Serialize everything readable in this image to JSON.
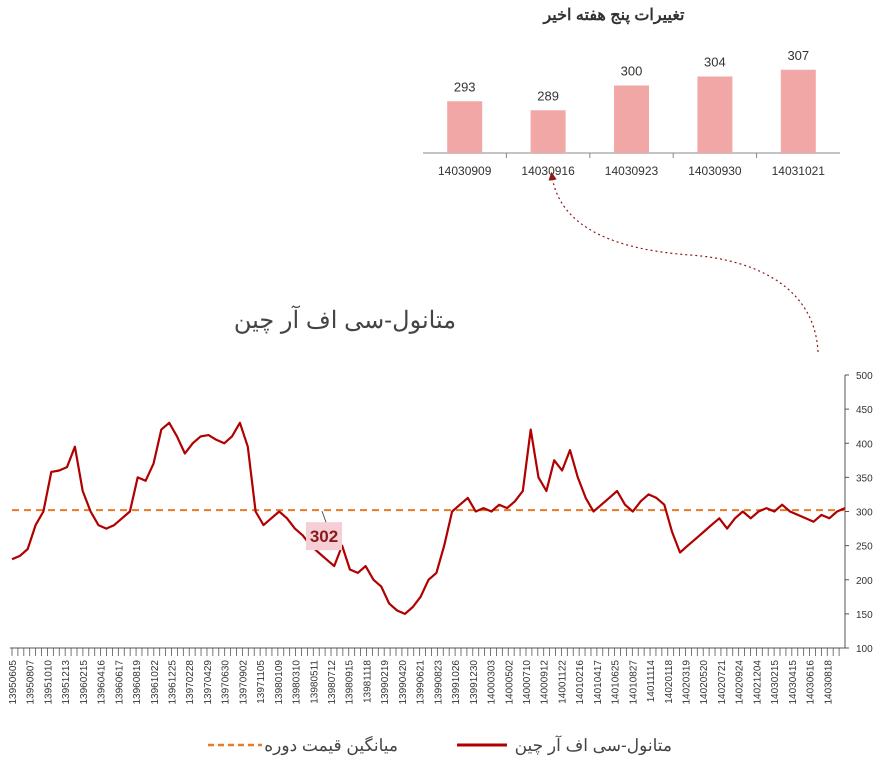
{
  "colors": {
    "bar": "#f2a7a7",
    "line": "#b00000",
    "avg_line": "#e8792b",
    "label_box": "#f6cfd6",
    "arrow": "#8b1a1a",
    "axis": "#555555"
  },
  "chart_data": [
    {
      "type": "bar",
      "title": "تغییرات پنج هفته اخیر",
      "categories": [
        "14030909",
        "14030916",
        "14030923",
        "14030930",
        "14031021"
      ],
      "values": [
        293,
        289,
        300,
        304,
        307
      ],
      "ylim": [
        270,
        310
      ]
    },
    {
      "type": "line",
      "title": "متانول-سی اف آر چین",
      "ylim": [
        100,
        500
      ],
      "yticks": [
        100,
        150,
        200,
        250,
        300,
        350,
        400,
        450,
        500
      ],
      "grid": false,
      "legend_position": "bottom",
      "x_tick_labels": [
        "13950605",
        "13950807",
        "13951010",
        "13951213",
        "13960215",
        "13960416",
        "13960617",
        "13960819",
        "13961022",
        "13961225",
        "13970228",
        "13970429",
        "13970630",
        "13970902",
        "13971105",
        "13980109",
        "13980310",
        "13980511",
        "13980712",
        "13980915",
        "13981118",
        "13990219",
        "13990420",
        "13990621",
        "13990823",
        "13991026",
        "13991230",
        "14000303",
        "14000502",
        "14000710",
        "14000912",
        "14001122",
        "14010216",
        "14010417",
        "14010625",
        "14010827",
        "14011114",
        "14020118",
        "14020319",
        "14020520",
        "14020721",
        "14020924",
        "14021204",
        "14030215",
        "14030415",
        "14030616",
        "14030818"
      ],
      "series": [
        {
          "name": "متانول-سی اف آر چین",
          "values": [
            230,
            235,
            245,
            280,
            300,
            358,
            360,
            365,
            395,
            330,
            300,
            280,
            275,
            280,
            290,
            300,
            350,
            345,
            370,
            420,
            430,
            410,
            385,
            400,
            410,
            412,
            405,
            400,
            410,
            430,
            395,
            300,
            280,
            290,
            300,
            290,
            275,
            265,
            250,
            240,
            230,
            220,
            250,
            215,
            210,
            220,
            200,
            190,
            165,
            155,
            150,
            160,
            175,
            200,
            210,
            250,
            300,
            310,
            320,
            300,
            305,
            300,
            310,
            305,
            315,
            330,
            420,
            350,
            330,
            375,
            360,
            390,
            350,
            320,
            300,
            310,
            320,
            330,
            310,
            300,
            315,
            325,
            320,
            310,
            270,
            240,
            250,
            260,
            270,
            280,
            290,
            275,
            290,
            300,
            290,
            300,
            305,
            300,
            310,
            300,
            295,
            290,
            285,
            295,
            290,
            300,
            305
          ]
        },
        {
          "name": "میانگین قیمت دوره",
          "values": [
            302
          ]
        }
      ],
      "annotations": [
        {
          "text": "302",
          "value": 302
        }
      ]
    }
  ],
  "legend": [
    {
      "label": "متانول-سی اف آر چین",
      "style": "solid"
    },
    {
      "label": "میانگین قیمت دوره",
      "style": "dashed"
    }
  ]
}
